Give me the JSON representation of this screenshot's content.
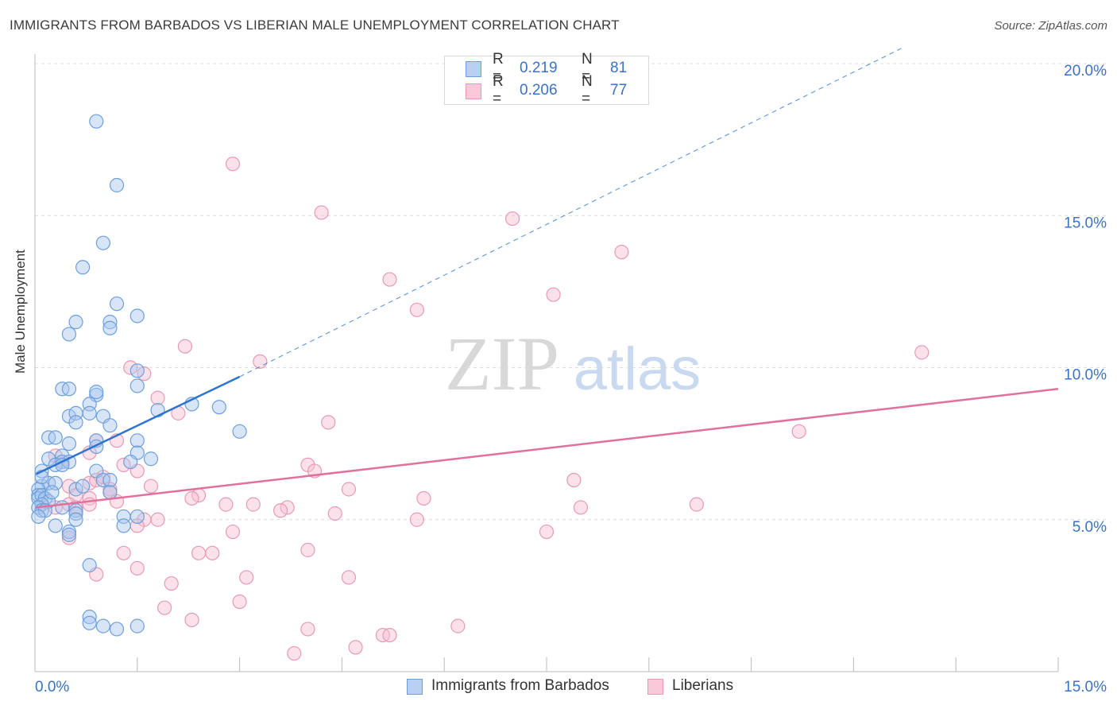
{
  "title": "IMMIGRANTS FROM BARBADOS VS LIBERIAN MALE UNEMPLOYMENT CORRELATION CHART",
  "source": "Source: ZipAtlas.com",
  "watermark": {
    "zip": "ZIP",
    "atlas": "atlas"
  },
  "colors": {
    "blue_fill": "#a9c6ee",
    "blue_stroke": "#6d9fdc",
    "blue_line": "#2d74d0",
    "pink_fill": "#f6bfd1",
    "pink_stroke": "#e89ab4",
    "pink_line": "#e2709c",
    "tick_label": "#3a72c4",
    "grid": "#dcdcdc"
  },
  "legend_top": [
    {
      "r_label": "R =",
      "r_value": "0.219",
      "n_label": "N =",
      "n_value": "81"
    },
    {
      "r_label": "R =",
      "r_value": "0.206",
      "n_label": "N =",
      "n_value": "77"
    }
  ],
  "legend_bottom": [
    "Immigrants from Barbados",
    "Liberians"
  ],
  "chart_data": {
    "type": "scatter",
    "title": "IMMIGRANTS FROM BARBADOS VS LIBERIAN MALE UNEMPLOYMENT CORRELATION CHART",
    "xlabel": "",
    "ylabel": "Male Unemployment",
    "xlim": [
      0,
      15
    ],
    "ylim": [
      0,
      20
    ],
    "x_tick_labels": [
      "0.0%",
      "15.0%"
    ],
    "y_tick_labels": [
      "5.0%",
      "10.0%",
      "15.0%",
      "20.0%"
    ],
    "y_ticks": [
      5,
      10,
      15,
      20
    ],
    "grid": true,
    "legend": "top-center",
    "series": [
      {
        "name": "Immigrants from Barbados",
        "R": 0.219,
        "N": 81,
        "trend": {
          "x": [
            0.02,
            3.0
          ],
          "y": [
            6.5,
            9.7
          ],
          "dashed_to": [
            12.7,
            20.5
          ]
        },
        "points": [
          [
            0.9,
            18.1
          ],
          [
            1.2,
            16.0
          ],
          [
            1.0,
            14.1
          ],
          [
            0.7,
            13.3
          ],
          [
            1.2,
            12.1
          ],
          [
            1.1,
            11.5
          ],
          [
            1.5,
            11.7
          ],
          [
            0.6,
            11.5
          ],
          [
            0.5,
            11.1
          ],
          [
            1.1,
            11.3
          ],
          [
            0.4,
            9.3
          ],
          [
            0.5,
            9.3
          ],
          [
            1.5,
            9.4
          ],
          [
            1.5,
            9.9
          ],
          [
            0.9,
            9.1
          ],
          [
            0.9,
            9.2
          ],
          [
            0.8,
            8.8
          ],
          [
            1.8,
            8.6
          ],
          [
            2.3,
            8.8
          ],
          [
            2.7,
            8.7
          ],
          [
            0.5,
            8.4
          ],
          [
            0.6,
            8.5
          ],
          [
            1.0,
            8.4
          ],
          [
            0.8,
            8.5
          ],
          [
            0.6,
            8.2
          ],
          [
            1.1,
            8.1
          ],
          [
            3.0,
            7.9
          ],
          [
            0.2,
            7.7
          ],
          [
            0.3,
            7.7
          ],
          [
            0.5,
            7.5
          ],
          [
            0.9,
            7.6
          ],
          [
            0.9,
            7.4
          ],
          [
            1.5,
            7.6
          ],
          [
            1.5,
            7.2
          ],
          [
            0.2,
            7.0
          ],
          [
            0.4,
            7.1
          ],
          [
            0.4,
            6.9
          ],
          [
            0.5,
            6.9
          ],
          [
            0.3,
            6.8
          ],
          [
            0.4,
            6.8
          ],
          [
            1.4,
            6.9
          ],
          [
            1.7,
            7.0
          ],
          [
            0.1,
            6.6
          ],
          [
            0.9,
            6.6
          ],
          [
            0.1,
            6.1
          ],
          [
            0.2,
            6.2
          ],
          [
            0.3,
            6.2
          ],
          [
            0.6,
            6.0
          ],
          [
            0.7,
            6.1
          ],
          [
            1.0,
            6.3
          ],
          [
            1.1,
            6.3
          ],
          [
            0.05,
            6.0
          ],
          [
            0.05,
            5.8
          ],
          [
            0.05,
            5.7
          ],
          [
            0.1,
            5.8
          ],
          [
            0.15,
            5.7
          ],
          [
            0.2,
            5.6
          ],
          [
            0.25,
            5.9
          ],
          [
            0.1,
            5.5
          ],
          [
            0.05,
            5.4
          ],
          [
            0.1,
            5.3
          ],
          [
            0.15,
            5.3
          ],
          [
            0.05,
            5.1
          ],
          [
            0.4,
            5.4
          ],
          [
            0.6,
            5.3
          ],
          [
            0.6,
            5.2
          ],
          [
            1.1,
            5.9
          ],
          [
            0.6,
            5.0
          ],
          [
            1.3,
            5.1
          ],
          [
            1.5,
            5.1
          ],
          [
            1.3,
            4.8
          ],
          [
            0.3,
            4.8
          ],
          [
            0.5,
            4.6
          ],
          [
            0.5,
            4.5
          ],
          [
            0.8,
            3.5
          ],
          [
            0.8,
            1.8
          ],
          [
            0.8,
            1.6
          ],
          [
            1.0,
            1.5
          ],
          [
            1.2,
            1.4
          ],
          [
            1.5,
            1.5
          ],
          [
            0.1,
            6.4
          ]
        ]
      },
      {
        "name": "Liberians",
        "R": 0.206,
        "N": 77,
        "trend": {
          "x": [
            0.02,
            15.0
          ],
          "y": [
            5.4,
            9.3
          ]
        },
        "points": [
          [
            2.9,
            16.7
          ],
          [
            4.2,
            15.1
          ],
          [
            7.0,
            14.9
          ],
          [
            8.6,
            13.8
          ],
          [
            5.2,
            12.9
          ],
          [
            7.6,
            12.4
          ],
          [
            5.6,
            11.9
          ],
          [
            2.2,
            10.7
          ],
          [
            13.0,
            10.5
          ],
          [
            3.3,
            10.2
          ],
          [
            1.4,
            10.0
          ],
          [
            1.6,
            9.8
          ],
          [
            1.8,
            9.0
          ],
          [
            2.1,
            8.5
          ],
          [
            4.3,
            8.2
          ],
          [
            11.2,
            7.9
          ],
          [
            1.2,
            7.6
          ],
          [
            0.9,
            7.6
          ],
          [
            0.8,
            7.2
          ],
          [
            0.3,
            7.1
          ],
          [
            0.4,
            6.9
          ],
          [
            1.3,
            6.8
          ],
          [
            4.0,
            6.8
          ],
          [
            4.1,
            6.6
          ],
          [
            1.5,
            6.6
          ],
          [
            1.0,
            6.4
          ],
          [
            0.8,
            6.2
          ],
          [
            0.9,
            6.3
          ],
          [
            1.7,
            6.1
          ],
          [
            0.5,
            6.1
          ],
          [
            1.1,
            6.0
          ],
          [
            4.6,
            6.0
          ],
          [
            7.9,
            6.3
          ],
          [
            1.1,
            5.9
          ],
          [
            0.6,
            5.8
          ],
          [
            0.8,
            5.7
          ],
          [
            2.4,
            5.8
          ],
          [
            2.3,
            5.7
          ],
          [
            5.7,
            5.7
          ],
          [
            1.2,
            5.6
          ],
          [
            0.8,
            5.5
          ],
          [
            0.5,
            5.5
          ],
          [
            0.1,
            5.5
          ],
          [
            0.3,
            5.4
          ],
          [
            2.8,
            5.5
          ],
          [
            3.2,
            5.5
          ],
          [
            3.7,
            5.4
          ],
          [
            3.6,
            5.3
          ],
          [
            4.4,
            5.2
          ],
          [
            8.0,
            5.4
          ],
          [
            9.7,
            5.5
          ],
          [
            0.6,
            5.4
          ],
          [
            1.6,
            5.0
          ],
          [
            1.8,
            5.0
          ],
          [
            5.6,
            5.0
          ],
          [
            1.5,
            4.8
          ],
          [
            2.9,
            4.6
          ],
          [
            7.5,
            4.6
          ],
          [
            0.5,
            4.4
          ],
          [
            1.3,
            3.9
          ],
          [
            2.4,
            3.9
          ],
          [
            2.6,
            3.9
          ],
          [
            4.0,
            4.0
          ],
          [
            1.5,
            3.4
          ],
          [
            0.9,
            3.2
          ],
          [
            3.1,
            3.1
          ],
          [
            4.6,
            3.1
          ],
          [
            2.0,
            2.9
          ],
          [
            3.0,
            2.3
          ],
          [
            1.9,
            2.1
          ],
          [
            2.3,
            1.7
          ],
          [
            4.0,
            1.4
          ],
          [
            6.2,
            1.5
          ],
          [
            5.1,
            1.2
          ],
          [
            5.2,
            1.2
          ],
          [
            4.7,
            0.8
          ],
          [
            3.8,
            0.6
          ]
        ]
      }
    ]
  }
}
